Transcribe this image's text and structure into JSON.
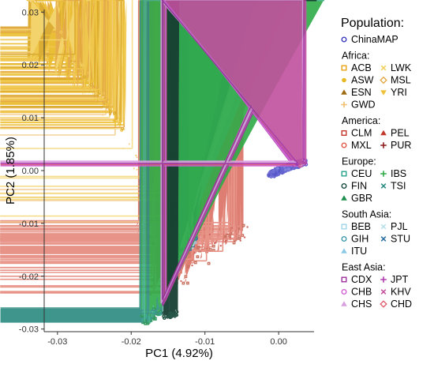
{
  "chart_data": {
    "type": "scatter",
    "title": "",
    "xlabel": "PC1 (4.92%)",
    "ylabel": "PC2 (1.85%)",
    "xlim": [
      -0.0318,
      0.0048
    ],
    "ylim": [
      -0.0305,
      0.0305
    ],
    "x_ticks": [
      -0.03,
      -0.02,
      -0.01,
      0.0
    ],
    "x_tick_labels": [
      "-0.03",
      "-0.02",
      "-0.01",
      "0.00"
    ],
    "y_ticks": [
      -0.03,
      -0.02,
      -0.01,
      0.0,
      0.01,
      0.02,
      0.03
    ],
    "y_tick_labels": [
      "-0.03",
      "-0.02",
      "-0.01",
      "0.00",
      "0.01",
      "0.02",
      "0.03"
    ],
    "grid": false,
    "legend": {
      "title": "Population:",
      "placement": "right",
      "groups": [
        {
          "name": "",
          "entries": [
            {
              "label": "ChinaMAP",
              "marker": "circle-open",
              "color": "#3b3bbf"
            }
          ]
        },
        {
          "name": "Africa:",
          "entries": [
            {
              "label": "ACB",
              "marker": "square-open",
              "color": "#e8a317"
            },
            {
              "label": "LWK",
              "marker": "x",
              "color": "#f2cf5b"
            },
            {
              "label": "ASW",
              "marker": "circle",
              "color": "#e8b820"
            },
            {
              "label": "MSL",
              "marker": "diamond-open",
              "color": "#e3a43a"
            },
            {
              "label": "ESN",
              "marker": "triangle",
              "color": "#9c6b12"
            },
            {
              "label": "YRI",
              "marker": "triangle-down",
              "color": "#efc23a"
            },
            {
              "label": "GWD",
              "marker": "plus",
              "color": "#f0c070"
            }
          ]
        },
        {
          "name": "America:",
          "entries": [
            {
              "label": "CLM",
              "marker": "square-open",
              "color": "#c0392b"
            },
            {
              "label": "PEL",
              "marker": "triangle",
              "color": "#c0392b"
            },
            {
              "label": "MXL",
              "marker": "circle-open",
              "color": "#e05a4a"
            },
            {
              "label": "PUR",
              "marker": "plus",
              "color": "#8b1a1a"
            }
          ]
        },
        {
          "name": "Europe:",
          "entries": [
            {
              "label": "CEU",
              "marker": "square-open",
              "color": "#27a38a"
            },
            {
              "label": "IBS",
              "marker": "plus",
              "color": "#2eab47"
            },
            {
              "label": "FIN",
              "marker": "circle-open",
              "color": "#1b4d3e"
            },
            {
              "label": "TSI",
              "marker": "x",
              "color": "#2b8a80"
            },
            {
              "label": "GBR",
              "marker": "triangle",
              "color": "#1e8f4e"
            }
          ]
        },
        {
          "name": "South Asia:",
          "entries": [
            {
              "label": "BEB",
              "marker": "square-open",
              "color": "#9ed6e8"
            },
            {
              "label": "PJL",
              "marker": "x",
              "color": "#b5e0ea"
            },
            {
              "label": "GIH",
              "marker": "circle-open",
              "color": "#3f9aa8"
            },
            {
              "label": "STU",
              "marker": "x",
              "color": "#2a6f9e"
            },
            {
              "label": "ITU",
              "marker": "triangle",
              "color": "#8ecae6"
            }
          ]
        },
        {
          "name": "East Asia:",
          "entries": [
            {
              "label": "CDX",
              "marker": "square-open",
              "color": "#9b2f9b"
            },
            {
              "label": "JPT",
              "marker": "plus",
              "color": "#b03ab0"
            },
            {
              "label": "CHB",
              "marker": "circle-open",
              "color": "#d35fd3"
            },
            {
              "label": "KHV",
              "marker": "x",
              "color": "#c2509e"
            },
            {
              "label": "CHS",
              "marker": "triangle",
              "color": "#d9a0e0"
            },
            {
              "label": "CHD",
              "marker": "diamond-open",
              "color": "#e05a6a"
            }
          ]
        }
      ]
    },
    "series": [
      {
        "name": "ChinaMAP",
        "color": "#4a4ac8",
        "points": [
          [
            0.0,
            0.0
          ],
          [
            0.001,
            0.0005
          ],
          [
            0.002,
            0.001
          ],
          [
            0.003,
            0.0015
          ],
          [
            0.0034,
            0.0016
          ],
          [
            -0.0005,
            -0.0003
          ],
          [
            -0.001,
            -0.0007
          ],
          [
            0.0026,
            0.0012
          ]
        ]
      },
      {
        "name": "East Asia",
        "color": "#d35fd3",
        "points": [
          [
            0.0028,
            0.0012
          ],
          [
            0.0032,
            0.0014
          ],
          [
            0.0035,
            0.0017
          ],
          [
            0.0022,
            0.0009
          ]
        ]
      },
      {
        "name": "Africa",
        "color": "#f0c040",
        "points": [
          [
            -0.0298,
            0.0268
          ],
          [
            -0.0295,
            0.026
          ],
          [
            -0.029,
            0.024
          ],
          [
            -0.0282,
            0.022
          ],
          [
            -0.027,
            0.02
          ],
          [
            -0.0262,
            0.018
          ],
          [
            -0.025,
            0.016
          ],
          [
            -0.024,
            0.014
          ],
          [
            -0.0225,
            0.011
          ],
          [
            -0.021,
            0.008
          ]
        ]
      },
      {
        "name": "America",
        "color": "#c0392b",
        "points": [
          [
            -0.018,
            -0.01
          ],
          [
            -0.016,
            -0.015
          ],
          [
            -0.014,
            -0.018
          ],
          [
            -0.012,
            -0.016
          ],
          [
            -0.01,
            -0.014
          ],
          [
            -0.008,
            -0.013
          ],
          [
            -0.006,
            -0.012
          ],
          [
            -0.005,
            -0.011
          ],
          [
            -0.017,
            -0.022
          ],
          [
            -0.013,
            -0.02
          ]
        ]
      },
      {
        "name": "Europe",
        "color": "#27a38a",
        "points": [
          [
            -0.0185,
            -0.028
          ],
          [
            -0.018,
            -0.0275
          ],
          [
            -0.0178,
            -0.0285
          ],
          [
            -0.017,
            -0.027
          ],
          [
            -0.016,
            -0.0265
          ]
        ]
      },
      {
        "name": "South Asia",
        "color": "#8ecae6",
        "points": [
          [
            -0.0155,
            -0.0215
          ],
          [
            -0.014,
            -0.0185
          ],
          [
            -0.013,
            -0.0155
          ],
          [
            -0.012,
            -0.0135
          ],
          [
            -0.0115,
            -0.0125
          ]
        ]
      }
    ]
  }
}
